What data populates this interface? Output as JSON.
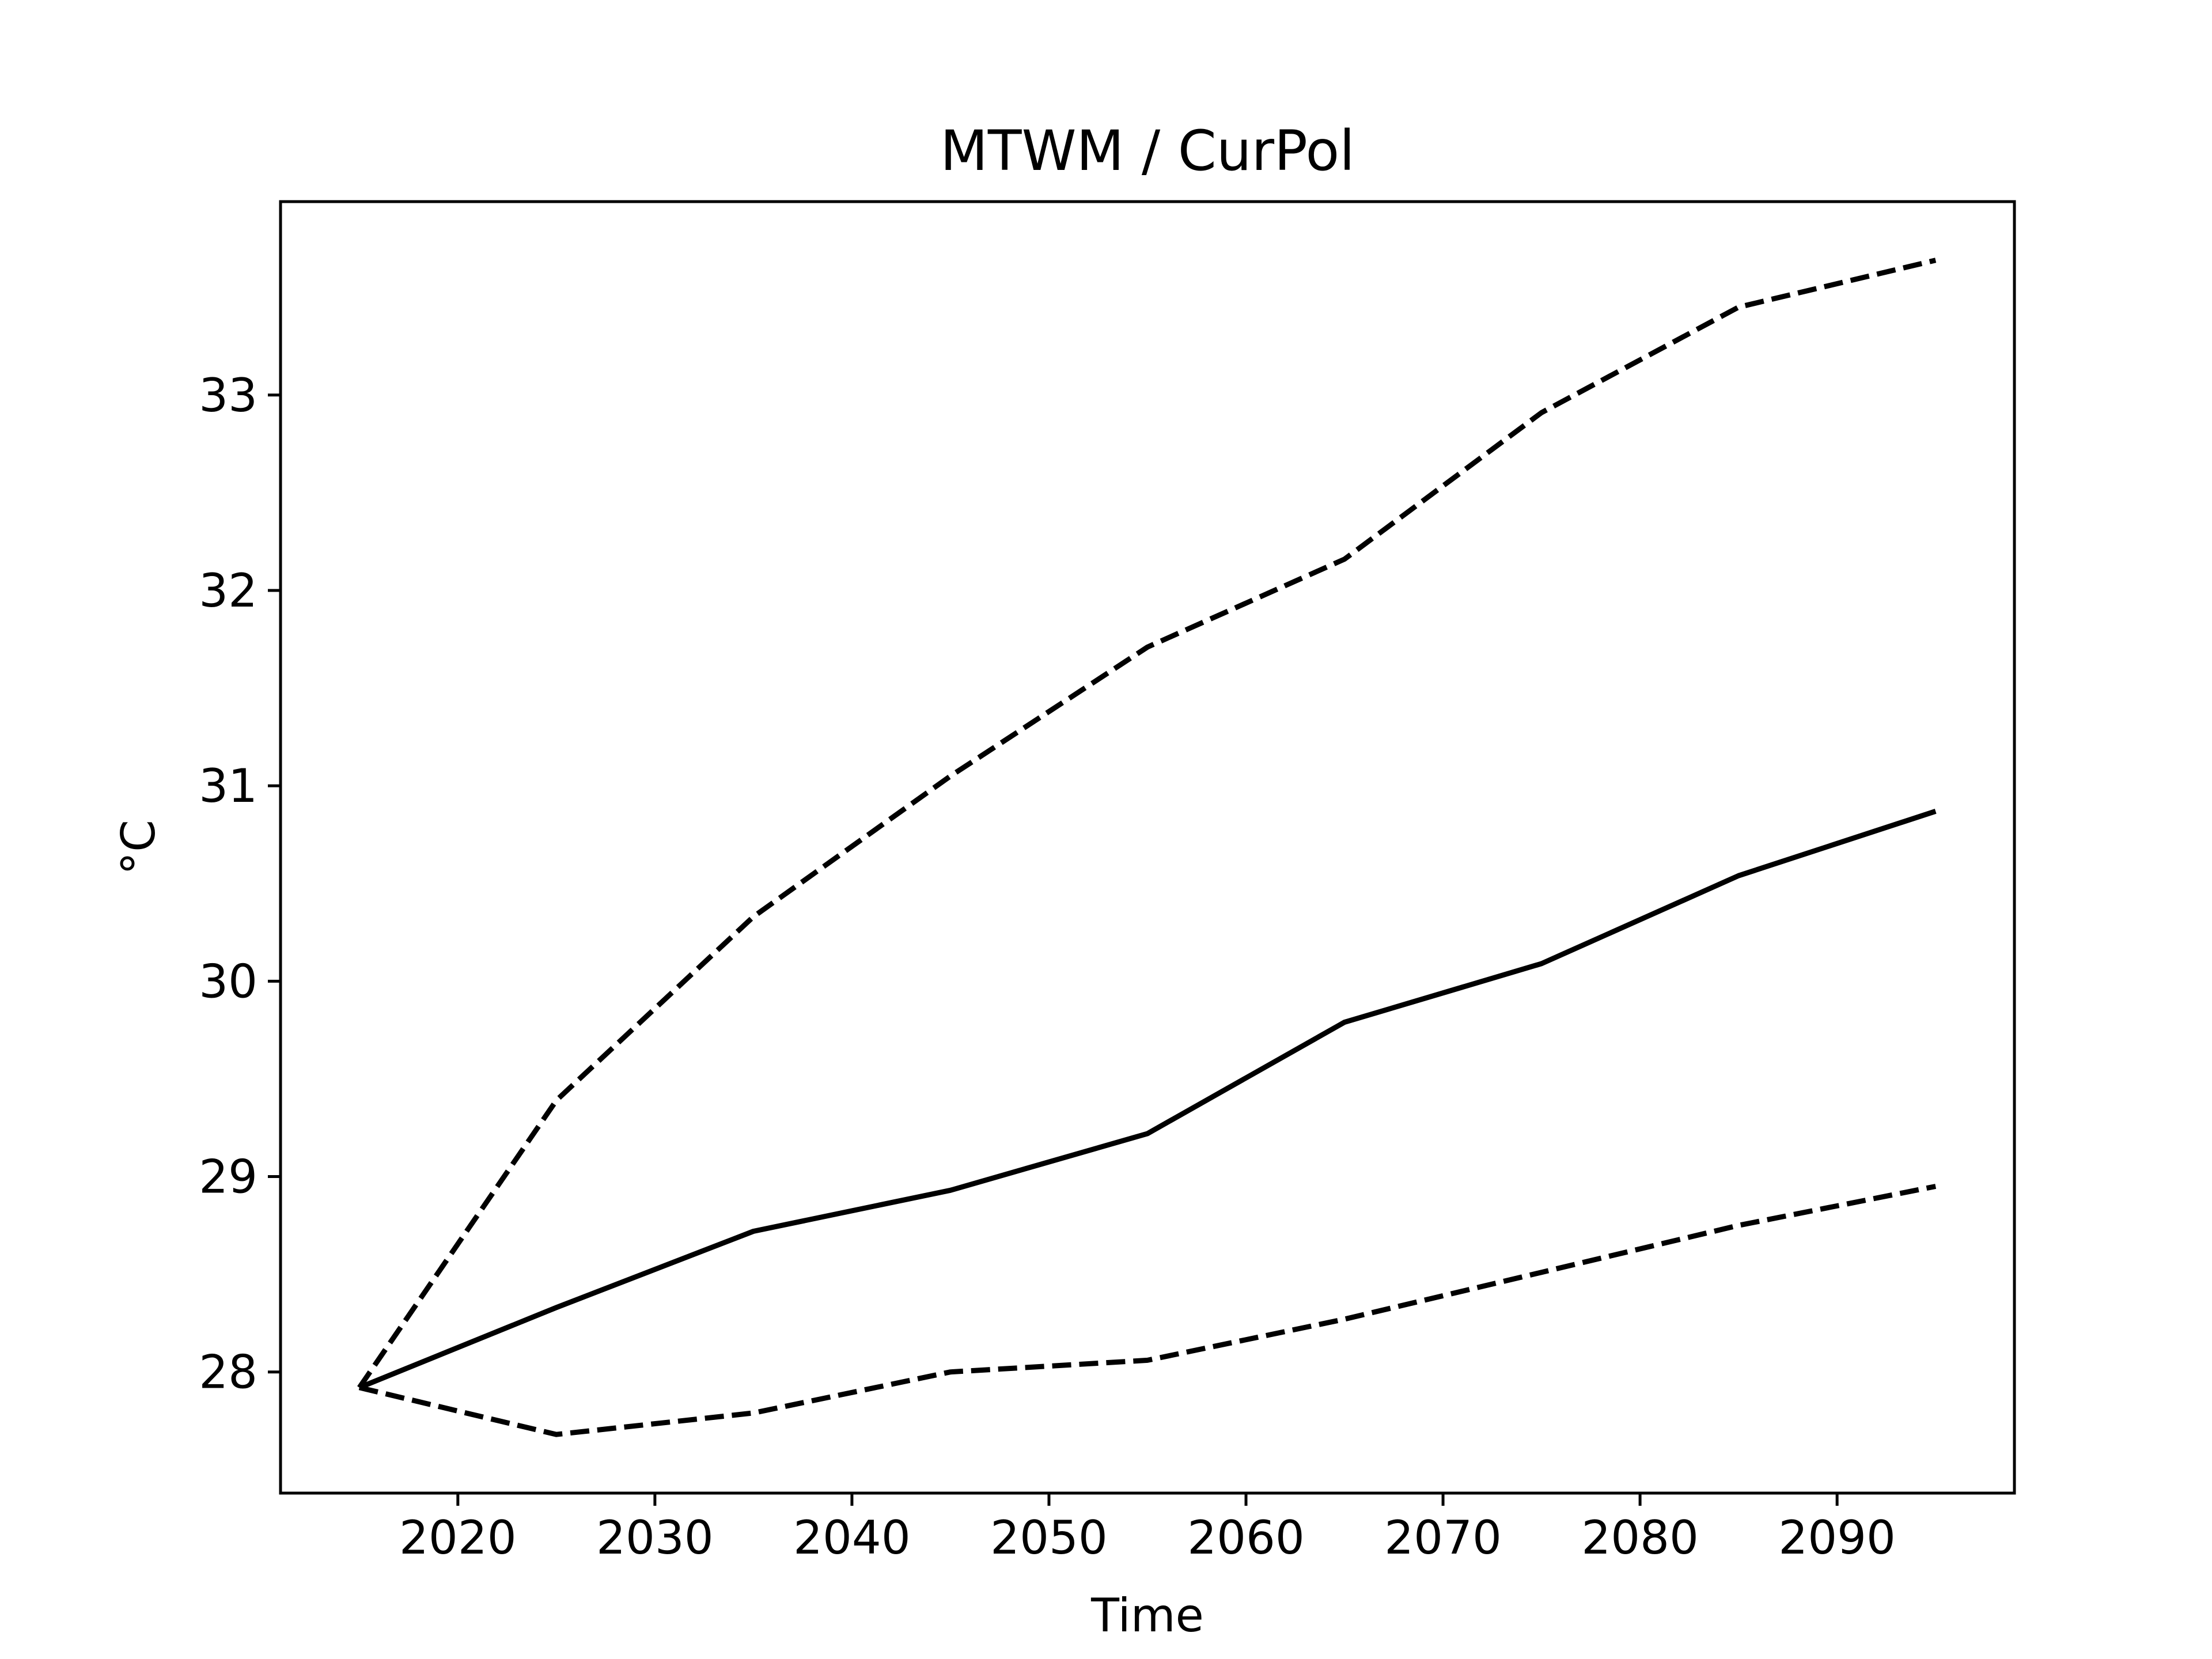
{
  "chart_data": {
    "type": "line",
    "title": "MTWM / CurPol",
    "xlabel": "Time",
    "ylabel": "°C",
    "x": [
      2015,
      2025,
      2035,
      2045,
      2055,
      2065,
      2075,
      2085,
      2095
    ],
    "xlim": [
      2011.0,
      2099.0
    ],
    "ylim": [
      27.38,
      33.99
    ],
    "xticks": [
      2020,
      2030,
      2040,
      2050,
      2060,
      2070,
      2080,
      2090
    ],
    "yticks": [
      28,
      29,
      30,
      31,
      32,
      33
    ],
    "grid": false,
    "legend": "none",
    "series": [
      {
        "values": [
          27.92,
          28.33,
          28.72,
          28.93,
          29.22,
          29.79,
          30.09,
          30.54,
          30.87
        ],
        "style": "solid",
        "color": "#000000"
      },
      {
        "values": [
          27.92,
          29.39,
          30.33,
          31.05,
          31.71,
          32.16,
          32.91,
          33.45,
          33.69
        ],
        "style": "dashed",
        "color": "#000000"
      },
      {
        "values": [
          27.92,
          27.68,
          27.79,
          28.0,
          28.06,
          28.27,
          28.51,
          28.75,
          28.95
        ],
        "style": "dashed",
        "color": "#000000"
      }
    ]
  }
}
